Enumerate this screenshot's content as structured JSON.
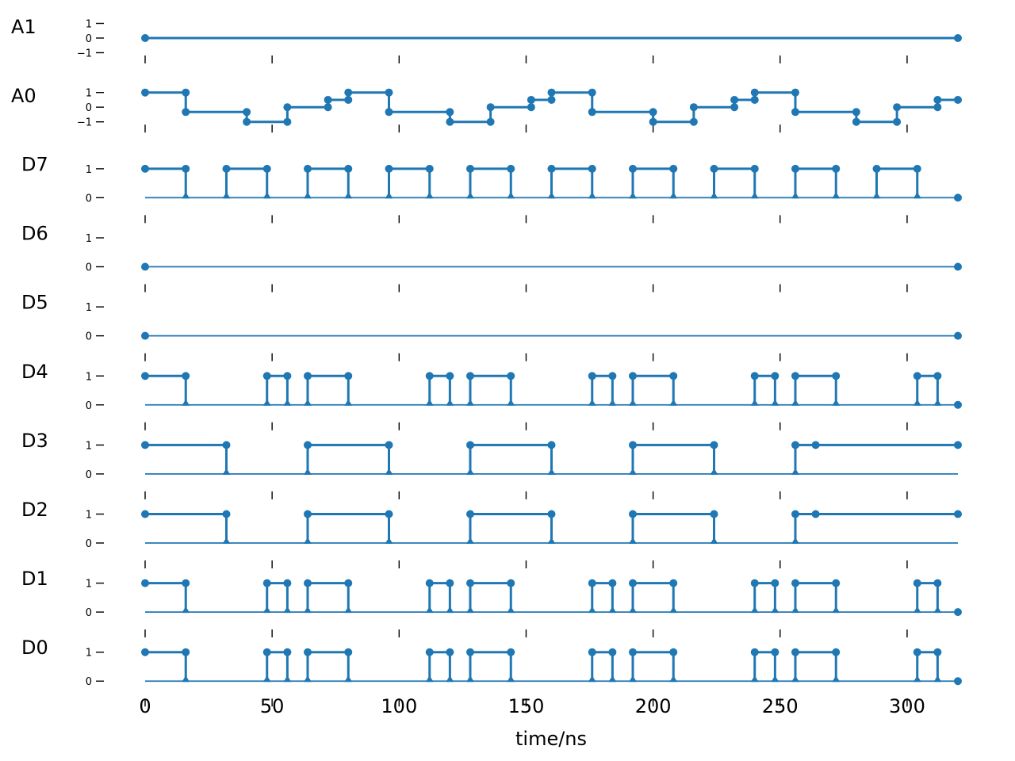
{
  "chart_data": {
    "type": "line",
    "title": "",
    "xlabel": "time/ns",
    "ylabel": "",
    "xlim": [
      0,
      320
    ],
    "x_ticks": [
      0,
      50,
      100,
      150,
      200,
      250,
      300
    ],
    "x_tick_labels": [
      "0",
      "50",
      "100",
      "150",
      "200",
      "250",
      "300"
    ],
    "grid": false,
    "legend": "none",
    "color": "#1f77b4",
    "series": [
      {
        "name": "A1",
        "kind": "analog",
        "yticks": [
          -1,
          0,
          1
        ],
        "ytick_labels": [
          "−1",
          "0",
          "1"
        ],
        "points": [
          [
            0,
            0
          ],
          [
            320,
            0
          ]
        ]
      },
      {
        "name": "A0",
        "kind": "analog",
        "yticks": [
          -1,
          0,
          1
        ],
        "ytick_labels": [
          "−1",
          "0",
          "1"
        ],
        "points": [
          [
            0,
            1
          ],
          [
            16,
            1
          ],
          [
            16,
            -0.33
          ],
          [
            40,
            -0.33
          ],
          [
            40,
            -1
          ],
          [
            56,
            -1
          ],
          [
            56,
            0
          ],
          [
            72,
            0
          ],
          [
            72,
            0.5
          ],
          [
            80,
            0.5
          ],
          [
            80,
            1
          ],
          [
            96,
            1
          ],
          [
            96,
            -0.33
          ],
          [
            120,
            -0.33
          ],
          [
            120,
            -1
          ],
          [
            136,
            -1
          ],
          [
            136,
            0
          ],
          [
            152,
            0
          ],
          [
            152,
            0.5
          ],
          [
            160,
            0.5
          ],
          [
            160,
            1
          ],
          [
            176,
            1
          ],
          [
            176,
            -0.33
          ],
          [
            200,
            -0.33
          ],
          [
            200,
            -1
          ],
          [
            216,
            -1
          ],
          [
            216,
            0
          ],
          [
            232,
            0
          ],
          [
            232,
            0.5
          ],
          [
            240,
            0.5
          ],
          [
            240,
            1
          ],
          [
            256,
            1
          ],
          [
            256,
            -0.33
          ],
          [
            280,
            -0.33
          ],
          [
            280,
            -1
          ],
          [
            296,
            -1
          ],
          [
            296,
            0
          ],
          [
            312,
            0
          ],
          [
            312,
            0.5
          ],
          [
            320,
            0.5
          ]
        ]
      },
      {
        "name": "D7",
        "kind": "digital",
        "yticks": [
          0,
          1
        ],
        "ytick_labels": [
          "0",
          "1"
        ],
        "initial": 1,
        "transitions": [
          16,
          32,
          48,
          64,
          80,
          96,
          112,
          128,
          144,
          160,
          176,
          192,
          208,
          224,
          240,
          256,
          272,
          288,
          304
        ],
        "end": 320
      },
      {
        "name": "D6",
        "kind": "digital",
        "yticks": [
          0,
          1
        ],
        "ytick_labels": [
          "0",
          "1"
        ],
        "initial": 0,
        "transitions": [],
        "end": 320
      },
      {
        "name": "D5",
        "kind": "digital",
        "yticks": [
          0,
          1
        ],
        "ytick_labels": [
          "0",
          "1"
        ],
        "initial": 0,
        "transitions": [],
        "end": 320
      },
      {
        "name": "D4",
        "kind": "digital",
        "yticks": [
          0,
          1
        ],
        "ytick_labels": [
          "0",
          "1"
        ],
        "initial": 1,
        "transitions": [
          16,
          48,
          56,
          64,
          80,
          112,
          120,
          128,
          144,
          176,
          184,
          192,
          208,
          240,
          248,
          256,
          272,
          304,
          312
        ],
        "end": 320
      },
      {
        "name": "D3",
        "kind": "digital",
        "yticks": [
          0,
          1
        ],
        "ytick_labels": [
          "0",
          "1"
        ],
        "initial": 1,
        "transitions": [
          32,
          64,
          96,
          128,
          160,
          192,
          224,
          256
        ],
        "extra_points": [
          264
        ],
        "end": 320
      },
      {
        "name": "D2",
        "kind": "digital",
        "yticks": [
          0,
          1
        ],
        "ytick_labels": [
          "0",
          "1"
        ],
        "initial": 1,
        "transitions": [
          32,
          64,
          96,
          128,
          160,
          192,
          224,
          256
        ],
        "extra_points": [
          264
        ],
        "end": 320
      },
      {
        "name": "D1",
        "kind": "digital",
        "yticks": [
          0,
          1
        ],
        "ytick_labels": [
          "0",
          "1"
        ],
        "initial": 1,
        "transitions": [
          16,
          48,
          56,
          64,
          80,
          112,
          120,
          128,
          144,
          176,
          184,
          192,
          208,
          240,
          248,
          256,
          272,
          304,
          312
        ],
        "end": 320
      },
      {
        "name": "D0",
        "kind": "digital",
        "yticks": [
          0,
          1
        ],
        "ytick_labels": [
          "0",
          "1"
        ],
        "initial": 1,
        "transitions": [
          16,
          48,
          56,
          64,
          80,
          112,
          120,
          128,
          144,
          176,
          184,
          192,
          208,
          240,
          248,
          256,
          272,
          304,
          312
        ],
        "end": 320
      }
    ]
  }
}
